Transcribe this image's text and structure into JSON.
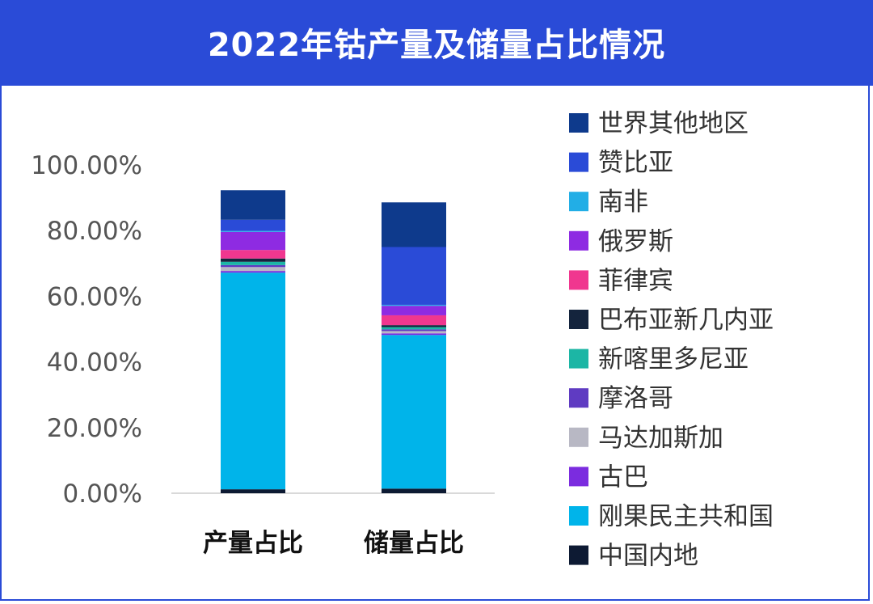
{
  "title": "2022年钴产量及储量占比情况",
  "chart_data": {
    "type": "bar",
    "stacked": true,
    "title": "2022年钴产量及储量占比情况",
    "categories": [
      "产量占比",
      "储量占比"
    ],
    "ylim": [
      0,
      100
    ],
    "yticks": [
      "0.00%",
      "20.00%",
      "40.00%",
      "60.00%",
      "80.00%",
      "100.00%"
    ],
    "ytick_values": [
      0,
      20,
      40,
      60,
      80,
      100
    ],
    "legend_position": "right",
    "series": [
      {
        "name": "中国内地",
        "color": "#0d1a33",
        "values": [
          1.2,
          1.4
        ]
      },
      {
        "name": "刚果民主共和国",
        "color": "#00b4ea",
        "values": [
          66.0,
          46.8
        ]
      },
      {
        "name": "古巴",
        "color": "#7b2cdf",
        "values": [
          0.5,
          0.5
        ]
      },
      {
        "name": "马达加斯加",
        "color": "#b8b8c4",
        "values": [
          1.2,
          0.7
        ]
      },
      {
        "name": "摩洛哥",
        "color": "#5f3bc2",
        "values": [
          0.6,
          0.5
        ]
      },
      {
        "name": "新喀里多尼亚",
        "color": "#1cb6a5",
        "values": [
          1.0,
          0.7
        ]
      },
      {
        "name": "巴布亚新几内亚",
        "color": "#14243d",
        "values": [
          1.0,
          0.6
        ]
      },
      {
        "name": "菲律宾",
        "color": "#f0378f",
        "values": [
          2.6,
          3.0
        ]
      },
      {
        "name": "俄罗斯",
        "color": "#8e2be2",
        "values": [
          5.5,
          2.9
        ]
      },
      {
        "name": "南非",
        "color": "#22aee6",
        "values": [
          0.3,
          0.3
        ]
      },
      {
        "name": "赞比亚",
        "color": "#2a4bd7",
        "values": [
          3.4,
          17.6
        ]
      },
      {
        "name": "世界其他地区",
        "color": "#0e3a8c",
        "values": [
          9.0,
          13.6
        ]
      }
    ],
    "base_segment": {
      "color": "#2a4bd7"
    },
    "legend_order": [
      "世界其他地区",
      "赞比亚",
      "南非",
      "俄罗斯",
      "菲律宾",
      "巴布亚新几内亚",
      "新喀里多尼亚",
      "摩洛哥",
      "马达加斯加",
      "古巴",
      "刚果民主共和国",
      "中国内地"
    ]
  }
}
